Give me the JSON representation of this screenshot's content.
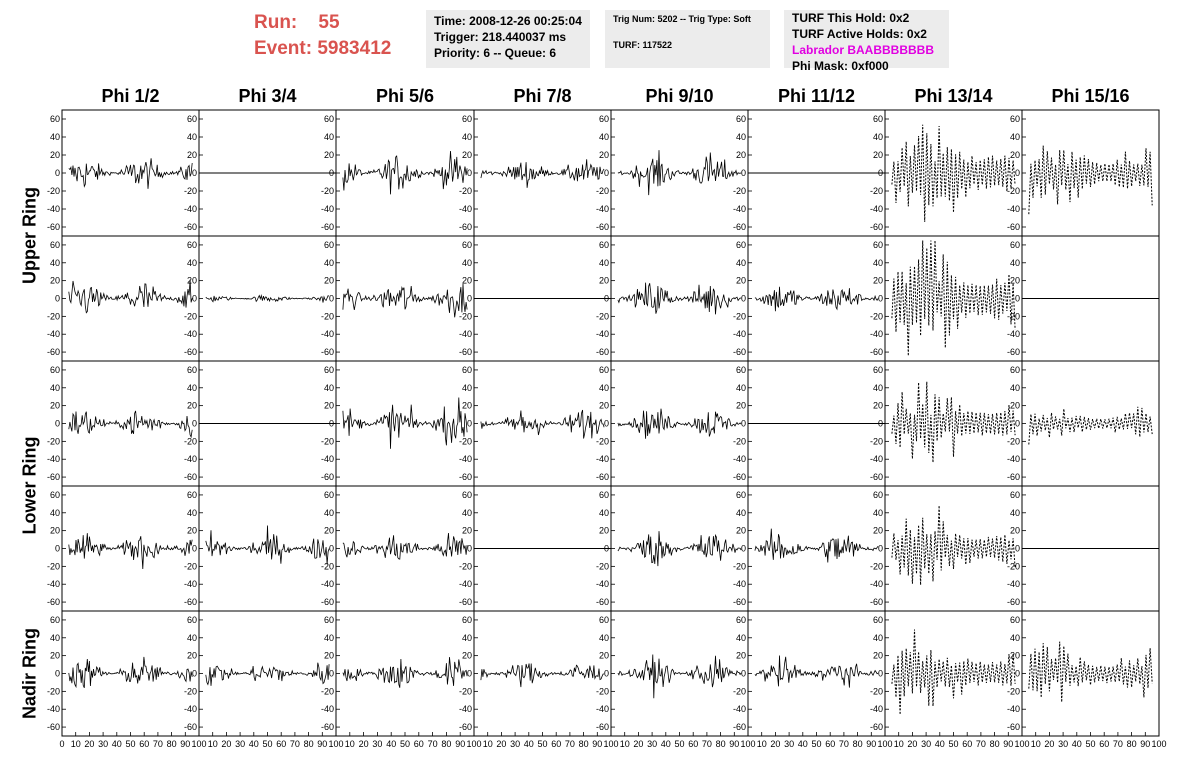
{
  "header": {
    "run_label": "Run:",
    "run_value": "55",
    "event_label": "Event:",
    "event_value": "5983412",
    "time": "Time: 2008-12-26 00:25:04",
    "trigger": "Trigger: 218.440037 ms",
    "priority": "Priority: 6 -- Queue: 6",
    "trig_num": "Trig Num: 5202 -- Trig Type: Soft",
    "turf": "TURF: 117522",
    "turf_hold": "TURF This Hold: 0x2",
    "turf_active": "TURF Active Holds: 0x2",
    "labrador": "Labrador BAABBBBBBB",
    "phi_mask": "Phi Mask: 0xf000"
  },
  "chart_data": {
    "type": "line",
    "title": "",
    "columns": [
      "Phi 1/2",
      "Phi 3/4",
      "Phi 5/6",
      "Phi 7/8",
      "Phi 9/10",
      "Phi 11/12",
      "Phi 13/14",
      "Phi 15/16"
    ],
    "rows": [
      "Upper Ring",
      "Upper Ring",
      "Lower Ring",
      "Lower Ring",
      "Nadir Ring"
    ],
    "ring_labels": [
      "Upper Ring",
      "Lower Ring",
      "Nadir Ring"
    ],
    "xlim": [
      0,
      100
    ],
    "ylim": [
      -70,
      70
    ],
    "y_ticks": [
      60,
      40,
      20,
      0,
      -20,
      -40,
      -60
    ],
    "y_tick_labels": [
      "60",
      "40",
      "20",
      "0",
      "-20",
      "-40",
      "-60"
    ],
    "x_tick_labels": [
      "0",
      "10",
      "20",
      "30",
      "40",
      "50",
      "60",
      "70",
      "80",
      "90",
      "100"
    ],
    "colors": {
      "trace": "#000000",
      "axes": "#000000",
      "header_box": "#ececec",
      "run_text": "#d9534f",
      "labrador": "#e100e1"
    },
    "panel_style": "solid trace for normal channels; dashed trace for masked phi sectors (Phi 13/14, Phi 15/16); flat line at 0 for channels with no signal",
    "panels": [
      [
        "noise_12",
        "flat",
        "noise_14",
        "noise_10",
        "noise_14",
        "flat",
        "dashed_30",
        "dashed_22"
      ],
      [
        "noise_14",
        "noise_3",
        "noise_14",
        "flat",
        "noise_14",
        "noise_12",
        "dashed_35",
        "flat"
      ],
      [
        "noise_12",
        "flat",
        "noise_16",
        "noise_12",
        "noise_12",
        "flat",
        "dashed_22",
        "dashed_12"
      ],
      [
        "noise_12",
        "noise_12",
        "noise_12",
        "flat",
        "noise_14",
        "noise_14",
        "dashed_22",
        "flat"
      ],
      [
        "noise_12",
        "noise_10",
        "noise_12",
        "noise_10",
        "noise_12",
        "noise_12",
        "dashed_22",
        "dashed_18"
      ]
    ]
  }
}
